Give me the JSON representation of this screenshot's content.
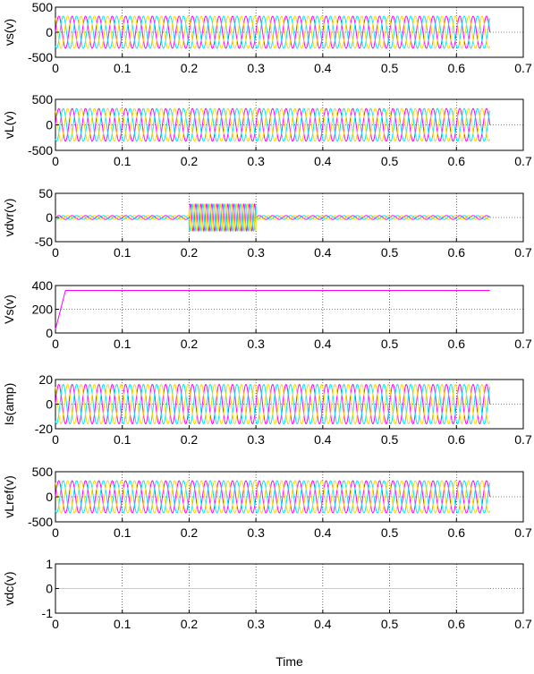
{
  "chart_data": [
    {
      "type": "line",
      "ylabel": "vs(v)",
      "xlim": [
        0,
        0.7
      ],
      "ylim": [
        -500,
        500
      ],
      "x_ticks": [
        "0",
        "0.1",
        "0.2",
        "0.3",
        "0.4",
        "0.5",
        "0.6",
        "0.7"
      ],
      "y_ticks": [
        "500",
        "0",
        "-500"
      ],
      "grid": true,
      "series": [
        {
          "color": "#ff00ff",
          "waveform": "sine",
          "amplitude": 320,
          "frequency_hz": 50,
          "phase_deg": 0,
          "t_end": 0.65
        },
        {
          "color": "#00e5ff",
          "waveform": "sine",
          "amplitude": 320,
          "frequency_hz": 50,
          "phase_deg": -120,
          "t_end": 0.65
        },
        {
          "color": "#ffd600",
          "waveform": "sine",
          "amplitude": 320,
          "frequency_hz": 50,
          "phase_deg": 120,
          "t_end": 0.65
        }
      ]
    },
    {
      "type": "line",
      "ylabel": "vL(v)",
      "xlim": [
        0,
        0.7
      ],
      "ylim": [
        -500,
        500
      ],
      "x_ticks": [
        "0",
        "0.1",
        "0.2",
        "0.3",
        "0.4",
        "0.5",
        "0.6",
        "0.7"
      ],
      "y_ticks": [
        "500",
        "0",
        "-500"
      ],
      "grid": true,
      "series": [
        {
          "color": "#ff00ff",
          "waveform": "sine",
          "amplitude": 320,
          "frequency_hz": 50,
          "phase_deg": 0,
          "t_end": 0.65
        },
        {
          "color": "#00e5ff",
          "waveform": "sine",
          "amplitude": 320,
          "frequency_hz": 50,
          "phase_deg": -120,
          "t_end": 0.65
        },
        {
          "color": "#ffd600",
          "waveform": "sine",
          "amplitude": 320,
          "frequency_hz": 50,
          "phase_deg": 120,
          "t_end": 0.65
        }
      ]
    },
    {
      "type": "line",
      "ylabel": "vdvr(v)",
      "xlim": [
        0,
        0.7
      ],
      "ylim": [
        -50,
        50
      ],
      "x_ticks": [
        "0",
        "0.1",
        "0.2",
        "0.3",
        "0.4",
        "0.5",
        "0.6",
        "0.7"
      ],
      "y_ticks": [
        "50",
        "0",
        "-50"
      ],
      "grid": true,
      "series": [
        {
          "color": "#ff00ff",
          "waveform": "sine",
          "amplitude": 4,
          "frequency_hz": 50,
          "phase_deg": 0,
          "t_end": 0.65,
          "event_window": [
            0.2,
            0.3
          ],
          "event_amplitude": 28,
          "event_frequency_hz": 125
        },
        {
          "color": "#00e5ff",
          "waveform": "sine",
          "amplitude": 4,
          "frequency_hz": 50,
          "phase_deg": -120,
          "t_end": 0.65,
          "event_window": [
            0.2,
            0.3
          ],
          "event_amplitude": 28,
          "event_frequency_hz": 125
        },
        {
          "color": "#ffd600",
          "waveform": "sine",
          "amplitude": 4,
          "frequency_hz": 50,
          "phase_deg": 120,
          "t_end": 0.65,
          "event_window": [
            0.2,
            0.3
          ],
          "event_amplitude": 28,
          "event_frequency_hz": 125
        }
      ]
    },
    {
      "type": "line",
      "ylabel": "Vs(v)",
      "xlim": [
        0,
        0.7
      ],
      "ylim": [
        0,
        400
      ],
      "x_ticks": [
        "0",
        "0.1",
        "0.2",
        "0.3",
        "0.4",
        "0.5",
        "0.6",
        "0.7"
      ],
      "y_ticks": [
        "400",
        "200",
        "0"
      ],
      "grid": true,
      "series": [
        {
          "color": "#ff00ff",
          "waveform": "points",
          "x": [
            0,
            0.015,
            0.65
          ],
          "y": [
            30,
            358,
            358
          ]
        }
      ]
    },
    {
      "type": "line",
      "ylabel": "Is(amp)",
      "xlim": [
        0,
        0.7
      ],
      "ylim": [
        -20,
        20
      ],
      "x_ticks": [
        "0",
        "0.1",
        "0.2",
        "0.3",
        "0.4",
        "0.5",
        "0.6",
        "0.7"
      ],
      "y_ticks": [
        "20",
        "0",
        "-20"
      ],
      "grid": true,
      "series": [
        {
          "color": "#ff00ff",
          "waveform": "sine",
          "amplitude": 16,
          "frequency_hz": 50,
          "phase_deg": 0,
          "t_end": 0.65
        },
        {
          "color": "#00e5ff",
          "waveform": "sine",
          "amplitude": 16,
          "frequency_hz": 50,
          "phase_deg": -120,
          "t_end": 0.65
        },
        {
          "color": "#ffd600",
          "waveform": "sine",
          "amplitude": 16,
          "frequency_hz": 50,
          "phase_deg": 120,
          "t_end": 0.65
        }
      ]
    },
    {
      "type": "line",
      "ylabel": "vLref(v)",
      "xlim": [
        0,
        0.7
      ],
      "ylim": [
        -500,
        500
      ],
      "x_ticks": [
        "0",
        "0.1",
        "0.2",
        "0.3",
        "0.4",
        "0.5",
        "0.6",
        "0.7"
      ],
      "y_ticks": [
        "500",
        "0",
        "-500"
      ],
      "grid": true,
      "series": [
        {
          "color": "#ff00ff",
          "waveform": "sine",
          "amplitude": 320,
          "frequency_hz": 50,
          "phase_deg": 0,
          "t_end": 0.65
        },
        {
          "color": "#00e5ff",
          "waveform": "sine",
          "amplitude": 320,
          "frequency_hz": 50,
          "phase_deg": -120,
          "t_end": 0.65
        },
        {
          "color": "#ffd600",
          "waveform": "sine",
          "amplitude": 320,
          "frequency_hz": 50,
          "phase_deg": 120,
          "t_end": 0.65
        }
      ]
    },
    {
      "type": "line",
      "ylabel": "vdc(v)",
      "xlabel": "Time",
      "xlim": [
        0,
        0.7
      ],
      "ylim": [
        -1,
        1
      ],
      "x_ticks": [
        "0",
        "0.1",
        "0.2",
        "0.3",
        "0.4",
        "0.5",
        "0.6",
        "0.7"
      ],
      "y_ticks": [
        "1",
        "0",
        "-1"
      ],
      "grid": true,
      "series": [
        {
          "color": "#ffd600",
          "waveform": "points",
          "x": [
            0,
            0.65
          ],
          "y": [
            0,
            0
          ]
        }
      ]
    }
  ]
}
